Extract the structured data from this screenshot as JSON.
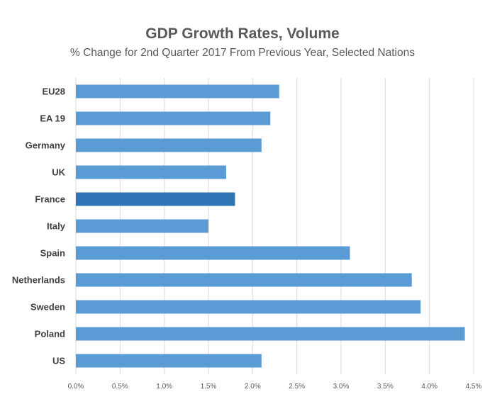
{
  "chart_data": {
    "type": "bar",
    "orientation": "horizontal",
    "title": "GDP Growth Rates, Volume",
    "subtitle": "% Change for 2nd Quarter 2017 From Previous Year, Selected Nations",
    "categories": [
      "EU28",
      "EA 19",
      "Germany",
      "UK",
      "France",
      "Italy",
      "Spain",
      "Netherlands",
      "Sweden",
      "Poland",
      "US"
    ],
    "values": [
      2.3,
      2.2,
      2.1,
      1.7,
      1.8,
      1.5,
      3.1,
      3.8,
      3.9,
      4.4,
      2.1
    ],
    "xlim": [
      0,
      4.5
    ],
    "x_ticks": [
      "0.0%",
      "0.5%",
      "1.0%",
      "1.5%",
      "2.0%",
      "2.5%",
      "3.0%",
      "3.5%",
      "4.0%",
      "4.5%"
    ],
    "grid": "vertical",
    "legend": "none",
    "colors": {
      "bar": "#5b9bd5",
      "highlight": "#2e75b6",
      "grid": "#d9d9d9"
    },
    "highlight_category": "France"
  }
}
